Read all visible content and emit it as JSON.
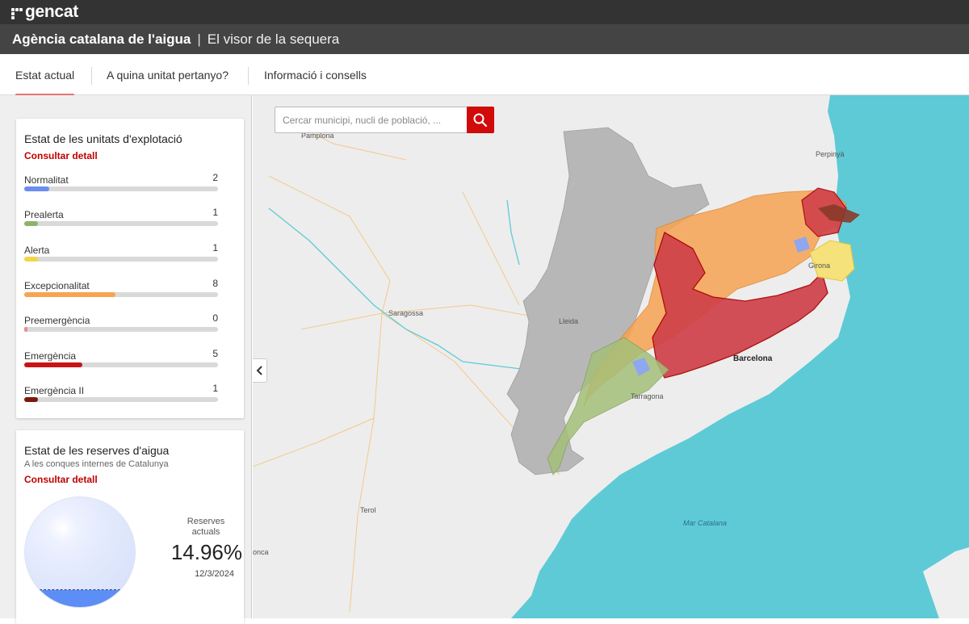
{
  "header": {
    "logo_text": "gencat",
    "agency": "Agència catalana de l'aigua",
    "separator": "|",
    "subtitle": "El visor de la sequera"
  },
  "nav": {
    "tabs": [
      {
        "label": "Estat actual",
        "active": true
      },
      {
        "label": "A quina unitat pertanyo?",
        "active": false
      },
      {
        "label": "Informació i consells",
        "active": false
      }
    ]
  },
  "units_card": {
    "title": "Estat de les unitats d'explotació",
    "link": "Consultar detall",
    "statuses": [
      {
        "label": "Normalitat",
        "count": "2",
        "fraction": 0.13,
        "color": "#6c8ef0"
      },
      {
        "label": "Prealerta",
        "count": "1",
        "fraction": 0.07,
        "color": "#8db36a"
      },
      {
        "label": "Alerta",
        "count": "1",
        "fraction": 0.07,
        "color": "#f5d547"
      },
      {
        "label": "Excepcionalitat",
        "count": "8",
        "fraction": 0.47,
        "color": "#f7a452"
      },
      {
        "label": "Preemergència",
        "count": "0",
        "fraction": 0.015,
        "color": "#f08a8a"
      },
      {
        "label": "Emergència",
        "count": "5",
        "fraction": 0.3,
        "color": "#c81414"
      },
      {
        "label": "Emergència II",
        "count": "1",
        "fraction": 0.07,
        "color": "#7a1a0a"
      }
    ]
  },
  "reserves_card": {
    "title": "Estat de les reserves d'aigua",
    "subtitle": "A les conques internes de Catalunya",
    "link": "Consultar detall",
    "label": "Reserves actuals",
    "value": "14.96%",
    "date": "12/3/2024",
    "fill_percent": 14.96
  },
  "map": {
    "search_placeholder": "Cercar municipi, nucli de població, ...",
    "colors": {
      "sea": "#5ecad6",
      "land": "#ededed",
      "aragon": "#b7b7b7",
      "orange": "#f7a452",
      "red": "#d0414a",
      "green": "#a5c07a",
      "yellow": "#f6e27a",
      "blue": "#8ea7ee",
      "brown": "#8a3a2a"
    },
    "places": {
      "pamplona": "Pamplona",
      "perpinya": "Perpinyà",
      "saragossa": "Saragossa",
      "lleida": "Lleida",
      "girona": "Girona",
      "barcelona": "Barcelona",
      "tarragona": "Tarragona",
      "terol": "Terol",
      "conca": "onca",
      "mar_catalana": "Mar Catalana"
    }
  }
}
